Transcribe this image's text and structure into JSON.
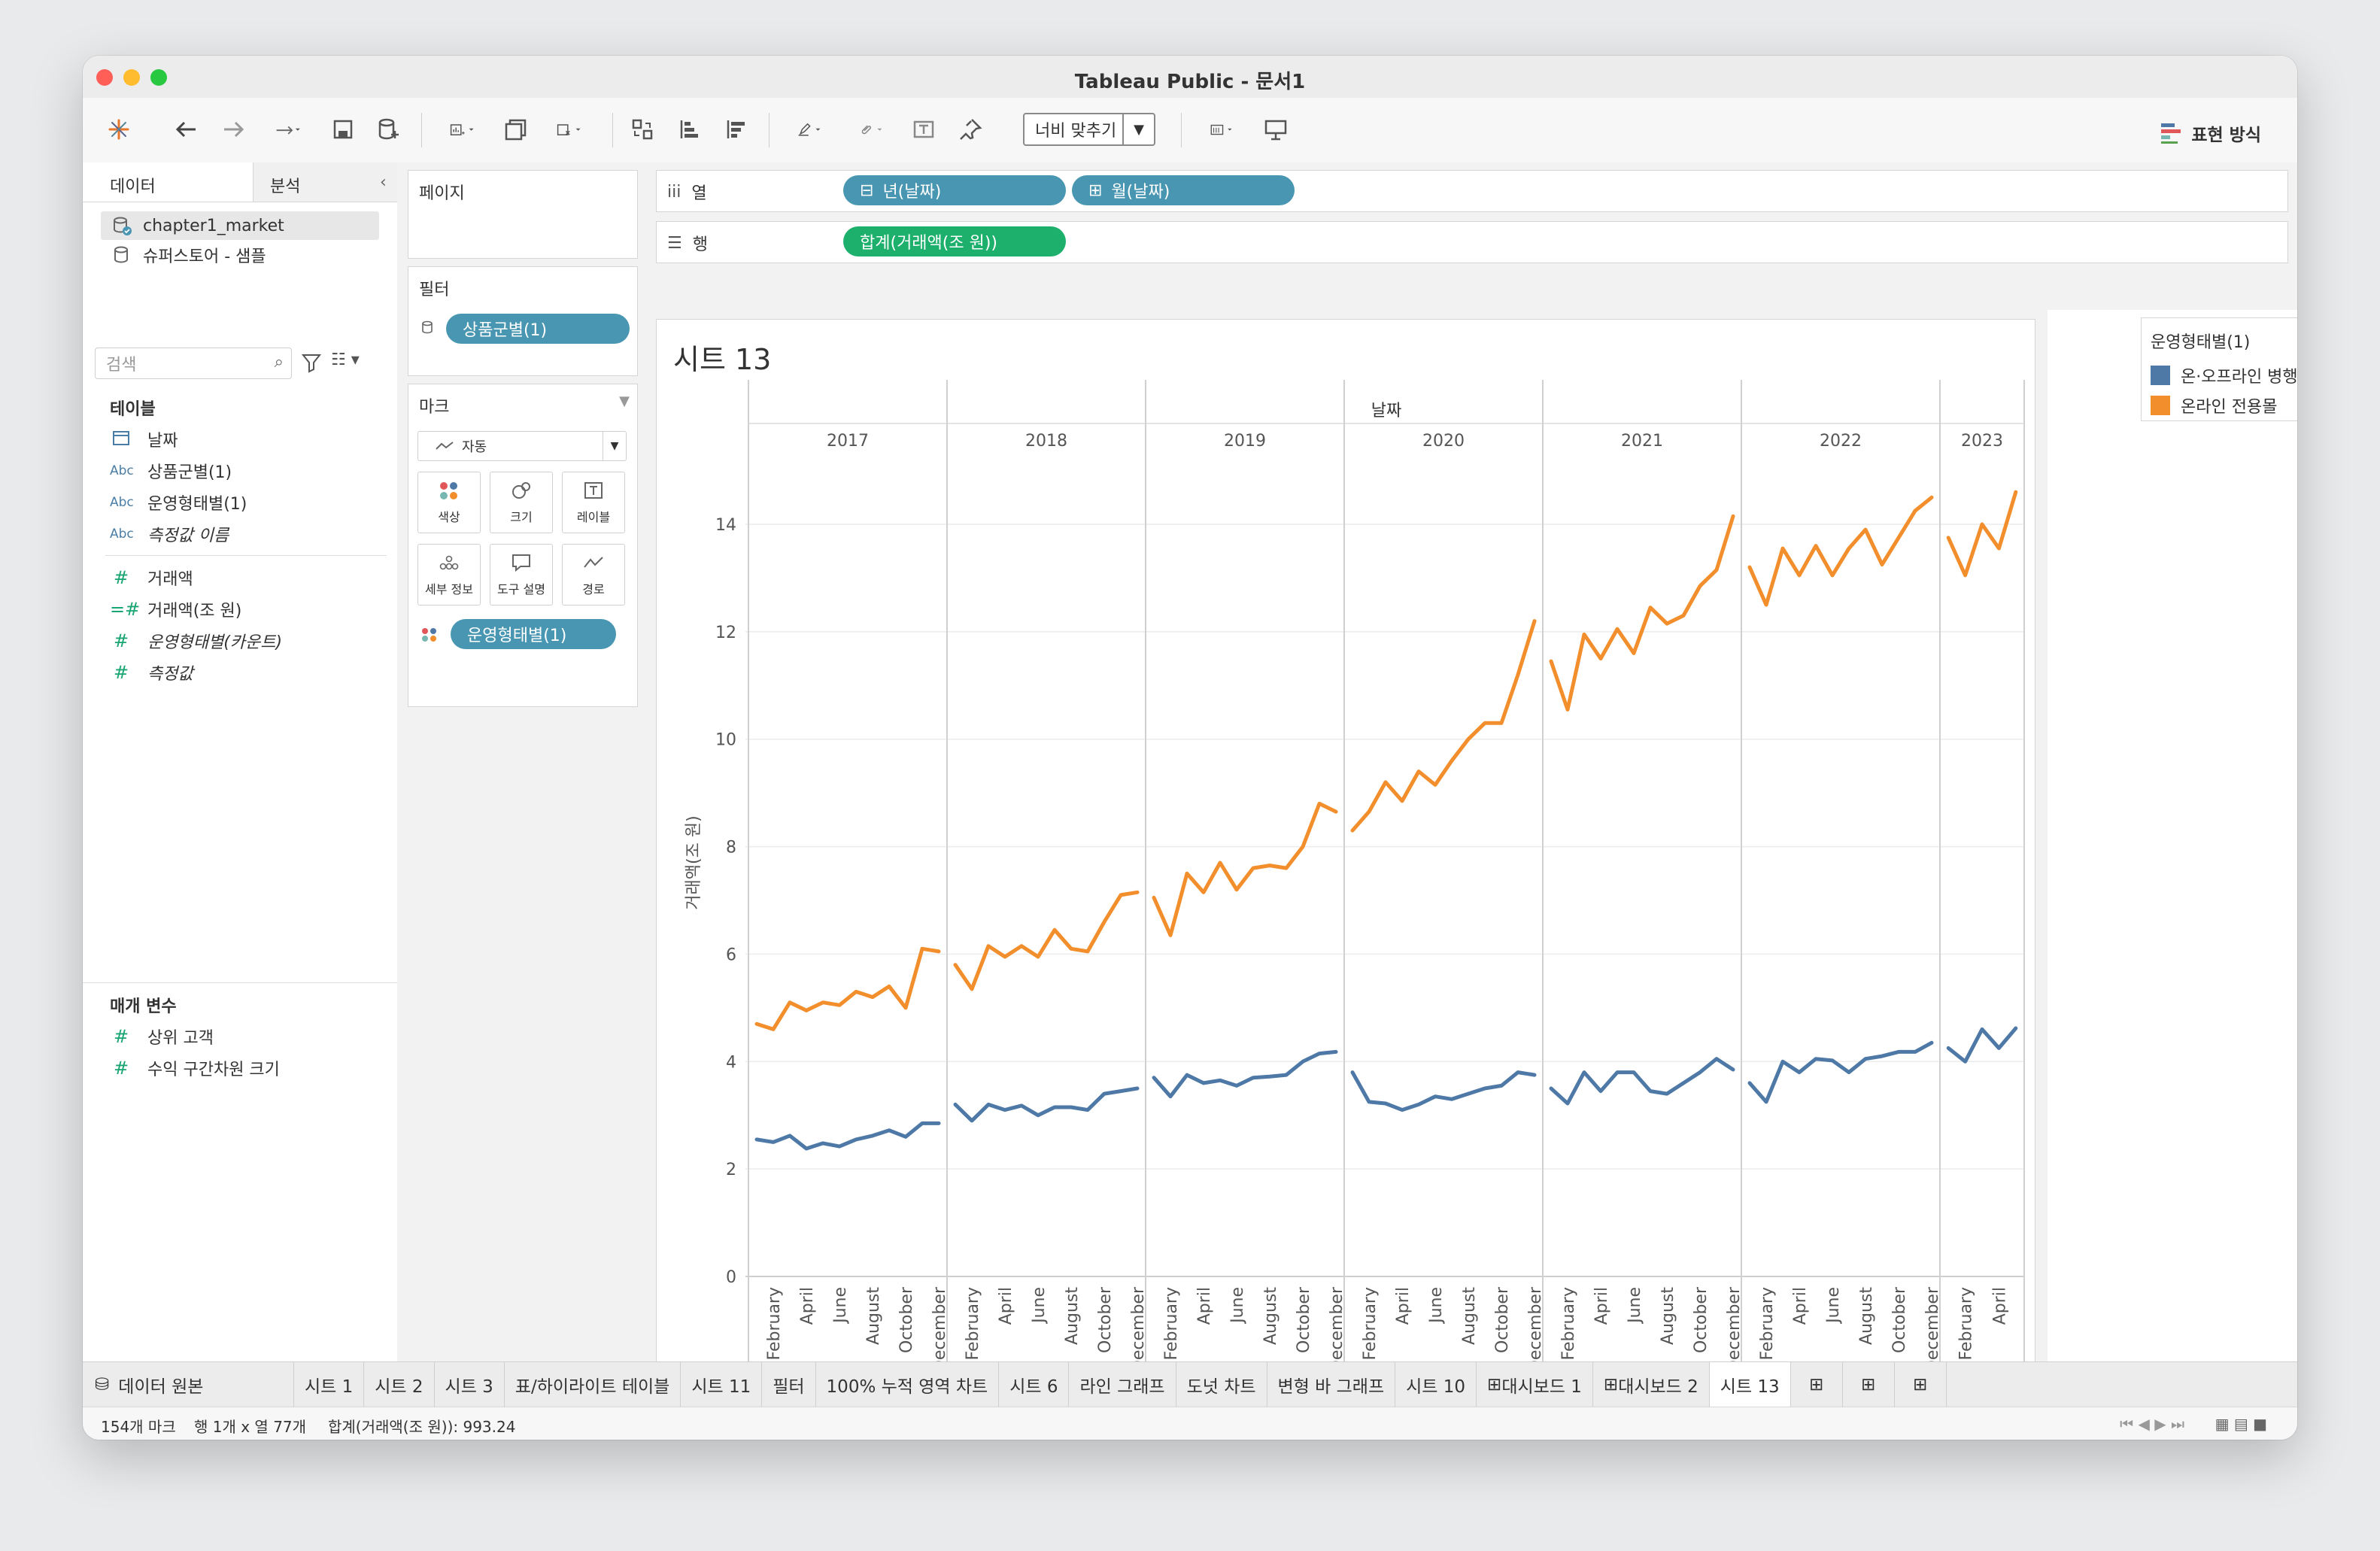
{
  "window": {
    "title": "Tableau Public - 문서1"
  },
  "toolbar": {
    "fit_label": "너비 맞추기",
    "showme_label": "표현 방식"
  },
  "left_panel": {
    "tab_data": "데이터",
    "tab_analysis": "분석",
    "datasources": [
      "chapter1_market",
      "슈퍼스토어 - 샘플"
    ],
    "search_placeholder": "검색",
    "tables_header": "테이블",
    "fields": [
      {
        "type": "Abc-date",
        "label": "날짜",
        "italic": false
      },
      {
        "type": "Abc",
        "label": "상품군별(1)",
        "italic": false
      },
      {
        "type": "Abc",
        "label": "운영형태별(1)",
        "italic": false
      },
      {
        "type": "Abc",
        "label": "측정값 이름",
        "italic": true
      },
      {
        "type": "#",
        "label": "거래액",
        "italic": false
      },
      {
        "type": "=#",
        "label": "거래액(조 원)",
        "italic": false
      },
      {
        "type": "#",
        "label": "운영형태별(카운트)",
        "italic": true
      },
      {
        "type": "#",
        "label": "측정값",
        "italic": true
      }
    ],
    "params_header": "매개 변수",
    "params": [
      "상위 고객",
      "수익 구간차원 크기"
    ]
  },
  "pages_card": {
    "title": "페이지"
  },
  "filters_card": {
    "title": "필터",
    "pill": "상품군별(1)"
  },
  "marks_card": {
    "title": "마크",
    "type": "자동",
    "buttons": [
      "색상",
      "크기",
      "레이블",
      "세부 정보",
      "도구 설명",
      "경로"
    ],
    "color_pill": "운영형태별(1)"
  },
  "shelves": {
    "columns_label": "열",
    "columns_pills": [
      "년(날짜)",
      "월(날짜)"
    ],
    "rows_label": "행",
    "rows_pills": [
      "합계(거래액(조 원))"
    ]
  },
  "sheet": {
    "title": "시트 13",
    "header": "날짜"
  },
  "legend": {
    "title": "운영형태별(1)",
    "items": [
      {
        "label": "온·오프라인 병행몰",
        "color": "#4e79a7"
      },
      {
        "label": "온라인 전용몰",
        "color": "#f28e2b"
      }
    ]
  },
  "chart_data": {
    "type": "line",
    "title": "",
    "xlabel": "날짜",
    "ylabel": "거래액(조 원)",
    "ylim": [
      0,
      15.4
    ],
    "yticks": [
      0,
      2,
      4,
      6,
      8,
      10,
      12,
      14
    ],
    "years": [
      "2017",
      "2018",
      "2019",
      "2020",
      "2021",
      "2022",
      "2023"
    ],
    "months_per_year": [
      12,
      12,
      12,
      12,
      12,
      12,
      5
    ],
    "month_tick_labels": [
      "February",
      "April",
      "June",
      "August",
      "October",
      "December"
    ],
    "month_tick_labels_2023": [
      "February",
      "April"
    ],
    "series": [
      {
        "name": "온·오프라인 병행몰",
        "color": "#4e79a7",
        "values": [
          [
            2.55,
            2.5,
            2.62,
            2.38,
            2.48,
            2.42,
            2.55,
            2.62,
            2.72,
            2.6,
            2.85,
            2.85
          ],
          [
            3.2,
            2.9,
            3.2,
            3.1,
            3.18,
            3.0,
            3.15,
            3.15,
            3.1,
            3.4,
            3.45,
            3.5
          ],
          [
            3.7,
            3.35,
            3.75,
            3.6,
            3.65,
            3.55,
            3.7,
            3.72,
            3.75,
            4.0,
            4.15,
            4.18
          ],
          [
            3.8,
            3.25,
            3.22,
            3.1,
            3.2,
            3.35,
            3.3,
            3.4,
            3.5,
            3.55,
            3.8,
            3.75
          ],
          [
            3.5,
            3.22,
            3.8,
            3.45,
            3.8,
            3.8,
            3.45,
            3.4,
            3.6,
            3.8,
            4.05,
            3.85
          ],
          [
            3.6,
            3.25,
            4.0,
            3.8,
            4.05,
            4.02,
            3.8,
            4.05,
            4.1,
            4.18,
            4.18,
            4.35
          ],
          [
            4.25,
            4.0,
            4.6,
            4.25,
            4.62
          ]
        ]
      },
      {
        "name": "온라인 전용몰",
        "color": "#f28e2b",
        "values": [
          [
            4.7,
            4.6,
            5.1,
            4.95,
            5.1,
            5.05,
            5.3,
            5.2,
            5.4,
            5.0,
            6.1,
            6.05
          ],
          [
            5.8,
            5.35,
            6.15,
            5.95,
            6.15,
            5.95,
            6.45,
            6.1,
            6.05,
            6.6,
            7.1,
            7.15
          ],
          [
            7.05,
            6.35,
            7.5,
            7.15,
            7.7,
            7.2,
            7.6,
            7.65,
            7.6,
            8.0,
            8.8,
            8.65
          ],
          [
            8.3,
            8.65,
            9.2,
            8.85,
            9.4,
            9.15,
            9.6,
            10.0,
            10.3,
            10.3,
            11.2,
            12.2
          ],
          [
            11.45,
            10.55,
            11.95,
            11.5,
            12.05,
            11.6,
            12.45,
            12.15,
            12.3,
            12.85,
            13.15,
            14.15
          ],
          [
            13.2,
            12.5,
            13.55,
            13.05,
            13.6,
            13.05,
            13.55,
            13.9,
            13.25,
            13.75,
            14.25,
            14.5
          ],
          [
            13.75,
            13.05,
            14.0,
            13.55,
            14.6
          ]
        ]
      }
    ]
  },
  "sheet_tabs": [
    "데이터 원본",
    "시트 1",
    "시트 2",
    "시트 3",
    "표/하이라이트 테이블",
    "시트 11",
    "필터",
    "100% 누적 영역 차트",
    "시트 6",
    "라인 그래프",
    "도넛 차트",
    "변형 바 그래프",
    "시트 10",
    "대시보드 1",
    "대시보드 2",
    "시트 13"
  ],
  "status": {
    "marks": "154개 마크",
    "dims": "행 1개 x 열 77개",
    "sum": "합계(거래액(조 원)): 993.24"
  }
}
